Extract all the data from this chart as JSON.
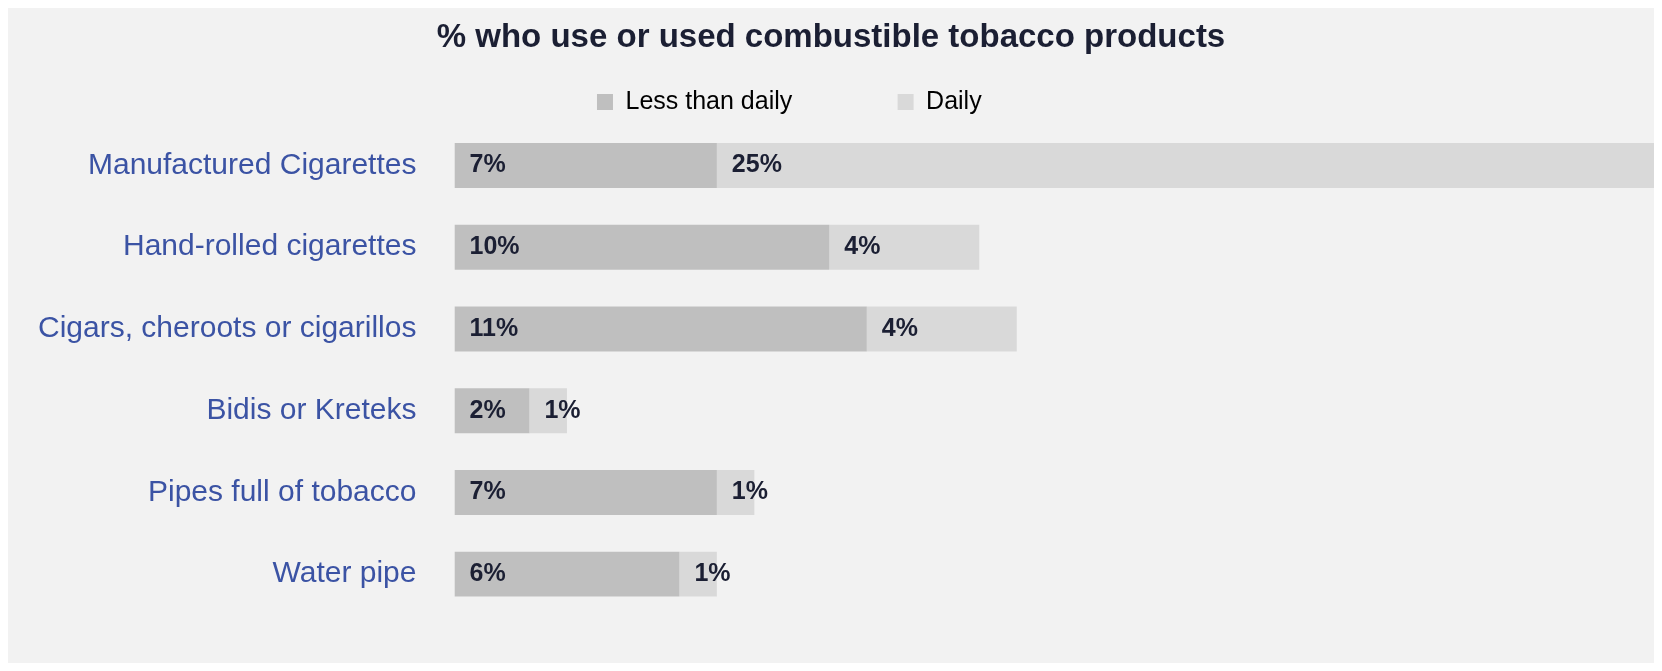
{
  "chart_data": {
    "type": "bar",
    "orientation": "horizontal",
    "stacked": true,
    "title": "% who use or used combustible tobacco products",
    "categories": [
      "Manufactured Cigarettes",
      "Hand-rolled cigarettes",
      "Cigars, cheroots or cigarillos",
      "Bidis or Kreteks",
      "Pipes full of tobacco",
      "Water pipe"
    ],
    "series": [
      {
        "name": "Less than daily",
        "color": "#bfbfbf",
        "values": [
          7,
          10,
          11,
          2,
          7,
          6
        ],
        "value_labels": [
          "7%",
          "10%",
          "11%",
          "2%",
          "7%",
          "6%"
        ]
      },
      {
        "name": "Daily",
        "color": "#d9d9d9",
        "values": [
          25,
          4,
          4,
          1,
          1,
          1
        ],
        "value_labels": [
          "25%",
          "4%",
          "4%",
          "1%",
          "1%",
          "1%"
        ]
      }
    ],
    "legend": "top",
    "tick_labels": "y"
  }
}
